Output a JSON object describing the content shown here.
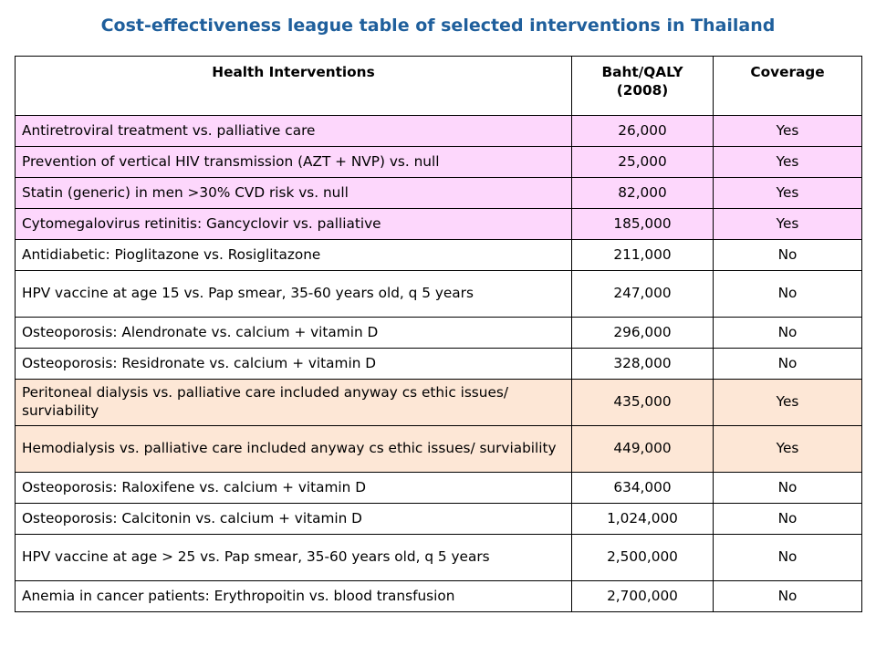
{
  "title": "Cost-effectiveness league table of selected interventions in Thailand",
  "table": {
    "headers": {
      "intervention": "Health Interventions",
      "cost": "Baht/QALY (2008)",
      "coverage": "Coverage"
    },
    "rows": [
      {
        "intervention": "Antiretroviral treatment vs. palliative care",
        "cost": "26,000",
        "coverage": "Yes",
        "highlight": "pink"
      },
      {
        "intervention": "Prevention of vertical HIV transmission (AZT + NVP) vs. null",
        "cost": "25,000",
        "coverage": "Yes",
        "highlight": "pink"
      },
      {
        "intervention": "Statin (generic) in men >30% CVD risk vs. null",
        "cost": "82,000",
        "coverage": "Yes",
        "highlight": "pink"
      },
      {
        "intervention": "Cytomegalovirus retinitis: Gancyclovir vs. palliative",
        "cost": "185,000",
        "coverage": "Yes",
        "highlight": "pink"
      },
      {
        "intervention": "Antidiabetic: Pioglitazone vs. Rosiglitazone",
        "cost": "211,000",
        "coverage": "No",
        "highlight": "white"
      },
      {
        "intervention": "HPV vaccine at age 15 vs. Pap smear, 35-60 years old, q 5 years",
        "cost": "247,000",
        "coverage": "No",
        "highlight": "white"
      },
      {
        "intervention": "Osteoporosis: Alendronate vs. calcium + vitamin D",
        "cost": "296,000",
        "coverage": "No",
        "highlight": "white"
      },
      {
        "intervention": "Osteoporosis: Residronate vs. calcium + vitamin D",
        "cost": "328,000",
        "coverage": "No",
        "highlight": "white"
      },
      {
        "intervention": "Peritoneal dialysis vs. palliative care included anyway cs ethic issues/ surviability",
        "cost": "435,000",
        "coverage": "Yes",
        "highlight": "peach"
      },
      {
        "intervention": "Hemodialysis vs. palliative care included anyway cs ethic issues/ surviability",
        "cost": "449,000",
        "coverage": "Yes",
        "highlight": "peach"
      },
      {
        "intervention": "Osteoporosis: Raloxifene vs. calcium + vitamin D",
        "cost": "634,000",
        "coverage": "No",
        "highlight": "white"
      },
      {
        "intervention": "Osteoporosis: Calcitonin vs. calcium + vitamin D",
        "cost": "1,024,000",
        "coverage": "No",
        "highlight": "white"
      },
      {
        "intervention": "HPV vaccine at age > 25 vs. Pap smear, 35-60 years old, q 5 years",
        "cost": "2,500,000",
        "coverage": "No",
        "highlight": "white"
      },
      {
        "intervention": "Anemia in cancer patients: Erythropoitin vs. blood transfusion",
        "cost": "2,700,000",
        "coverage": "No",
        "highlight": "white"
      }
    ]
  },
  "colors": {
    "title": "#1f5f9c",
    "pink": "#fdd7fc",
    "peach": "#fde7d6",
    "border": "#000000"
  }
}
